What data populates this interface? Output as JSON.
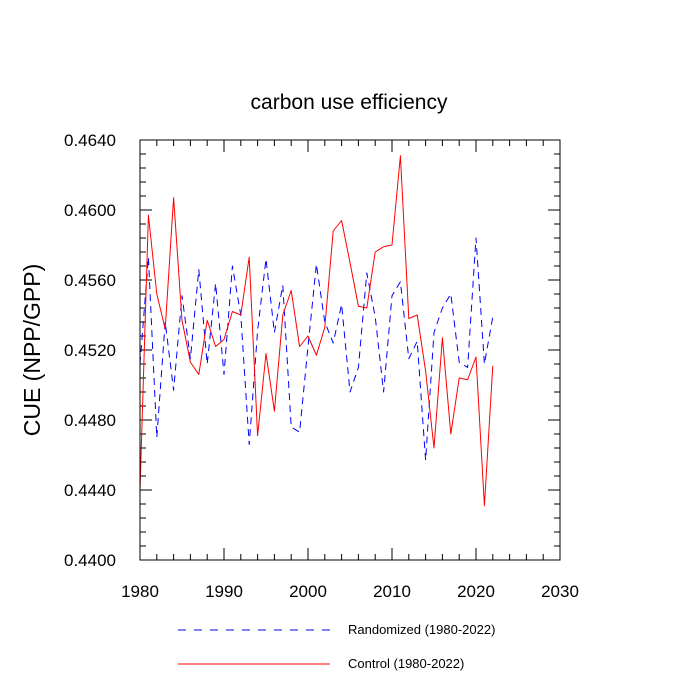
{
  "chart_data": {
    "type": "line",
    "title": "carbon use efficiency",
    "xlabel": "",
    "ylabel": "CUE  (NPP/GPP)",
    "xlim": [
      1980,
      2030
    ],
    "ylim": [
      0.44,
      0.464
    ],
    "xticks": [
      1980,
      1990,
      2000,
      2010,
      2020,
      2030
    ],
    "xtick_labels": [
      "1980",
      "1990",
      "2000",
      "2010",
      "2020",
      "2030"
    ],
    "yticks": [
      0.44,
      0.444,
      0.448,
      0.452,
      0.456,
      0.46,
      0.464
    ],
    "ytick_labels": [
      "0.4400",
      "0.4440",
      "0.4480",
      "0.4520",
      "0.4560",
      "0.4600",
      "0.4640"
    ],
    "grid": false,
    "legend_position": "bottom",
    "x": [
      1980,
      1981,
      1982,
      1983,
      1984,
      1985,
      1986,
      1987,
      1988,
      1989,
      1990,
      1991,
      1992,
      1993,
      1994,
      1995,
      1996,
      1997,
      1998,
      1999,
      2000,
      2001,
      2002,
      2003,
      2004,
      2005,
      2006,
      2007,
      2008,
      2009,
      2010,
      2011,
      2012,
      2013,
      2014,
      2015,
      2016,
      2017,
      2018,
      2019,
      2020,
      2021,
      2022
    ],
    "series": [
      {
        "name": "Randomized (1980-2022)",
        "color": "#0000ff",
        "dash": "dashed",
        "values": [
          0.4512,
          0.4573,
          0.447,
          0.4536,
          0.4497,
          0.4551,
          0.4515,
          0.4566,
          0.4512,
          0.4558,
          0.4506,
          0.4568,
          0.454,
          0.4466,
          0.4531,
          0.4572,
          0.453,
          0.4557,
          0.4476,
          0.4473,
          0.4522,
          0.4569,
          0.4536,
          0.4524,
          0.4546,
          0.4496,
          0.451,
          0.4564,
          0.4539,
          0.4496,
          0.4551,
          0.4559,
          0.4515,
          0.4525,
          0.4457,
          0.453,
          0.4544,
          0.4552,
          0.4513,
          0.451,
          0.4584,
          0.4512,
          0.4539
        ]
      },
      {
        "name": "Control (1980-2022)",
        "color": "#ff0000",
        "dash": "solid",
        "values": [
          0.444,
          0.4597,
          0.4552,
          0.4532,
          0.4607,
          0.4537,
          0.4513,
          0.4506,
          0.4537,
          0.4522,
          0.4526,
          0.4542,
          0.454,
          0.4573,
          0.4471,
          0.4518,
          0.4485,
          0.454,
          0.4554,
          0.4522,
          0.4528,
          0.4517,
          0.4533,
          0.4588,
          0.4594,
          0.457,
          0.4545,
          0.4544,
          0.4576,
          0.4579,
          0.458,
          0.4631,
          0.4538,
          0.454,
          0.4508,
          0.4464,
          0.4527,
          0.4472,
          0.4504,
          0.4503,
          0.4516,
          0.4431,
          0.4511
        ]
      }
    ]
  }
}
